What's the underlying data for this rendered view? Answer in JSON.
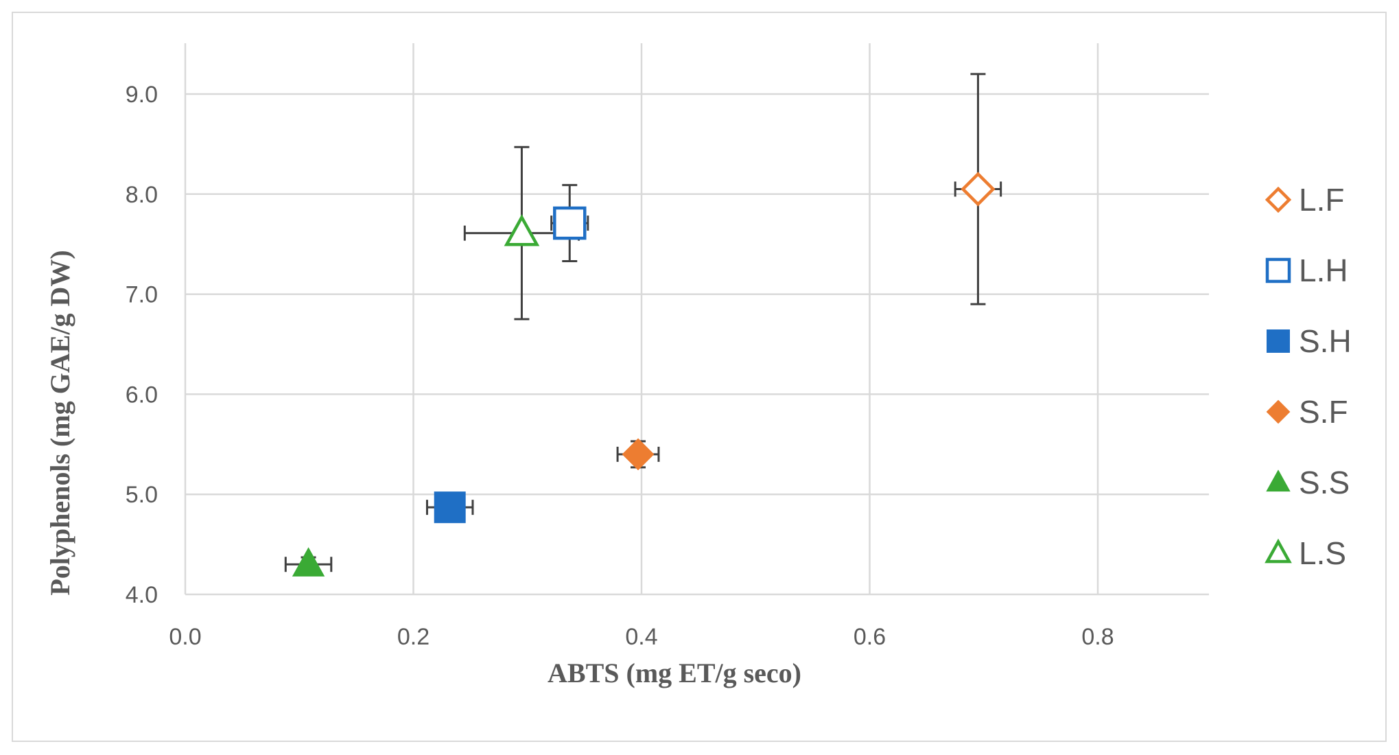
{
  "chart_data": {
    "type": "scatter",
    "title": "",
    "xlabel": "ABTS  (mg ET/g seco)",
    "ylabel": "Polyphenols (mg GAE/g DW)",
    "xlim": [
      0.0,
      0.9
    ],
    "ylim": [
      4.0,
      9.5
    ],
    "x_ticks": [
      0.0,
      0.2,
      0.4,
      0.6,
      0.8
    ],
    "x_tick_labels": [
      "0.0",
      "0.2",
      "0.4",
      "0.6",
      "0.8"
    ],
    "y_ticks": [
      4.0,
      5.0,
      6.0,
      7.0,
      8.0,
      9.0
    ],
    "y_tick_labels": [
      "4.0",
      "5.0",
      "6.0",
      "7.0",
      "8.0",
      "9.0"
    ],
    "grid": true,
    "legend_position": "right",
    "error_bar_color": "#404040",
    "series": [
      {
        "name": "L.F",
        "marker": "diamond",
        "filled": false,
        "color": "#ED7D31",
        "x": 0.695,
        "y": 8.05,
        "x_err": 0.02,
        "y_err": 1.15
      },
      {
        "name": "L.H",
        "marker": "square",
        "filled": false,
        "color": "#1F6FC5",
        "x": 0.337,
        "y": 7.71,
        "x_err": 0.016,
        "y_err": 0.38
      },
      {
        "name": "S.H",
        "marker": "square",
        "filled": true,
        "color": "#1F6FC5",
        "x": 0.232,
        "y": 4.87,
        "x_err": 0.02,
        "y_err": 0.13
      },
      {
        "name": "S.F",
        "marker": "diamond",
        "filled": true,
        "color": "#ED7D31",
        "x": 0.397,
        "y": 5.4,
        "x_err": 0.018,
        "y_err": 0.13
      },
      {
        "name": "S.S",
        "marker": "triangle",
        "filled": true,
        "color": "#3AAA35",
        "x": 0.108,
        "y": 4.3,
        "x_err": 0.02,
        "y_err": 0.07
      },
      {
        "name": "L.S",
        "marker": "triangle",
        "filled": false,
        "color": "#3AAA35",
        "x": 0.295,
        "y": 7.61,
        "x_err": 0.05,
        "y_err": 0.86
      }
    ]
  }
}
